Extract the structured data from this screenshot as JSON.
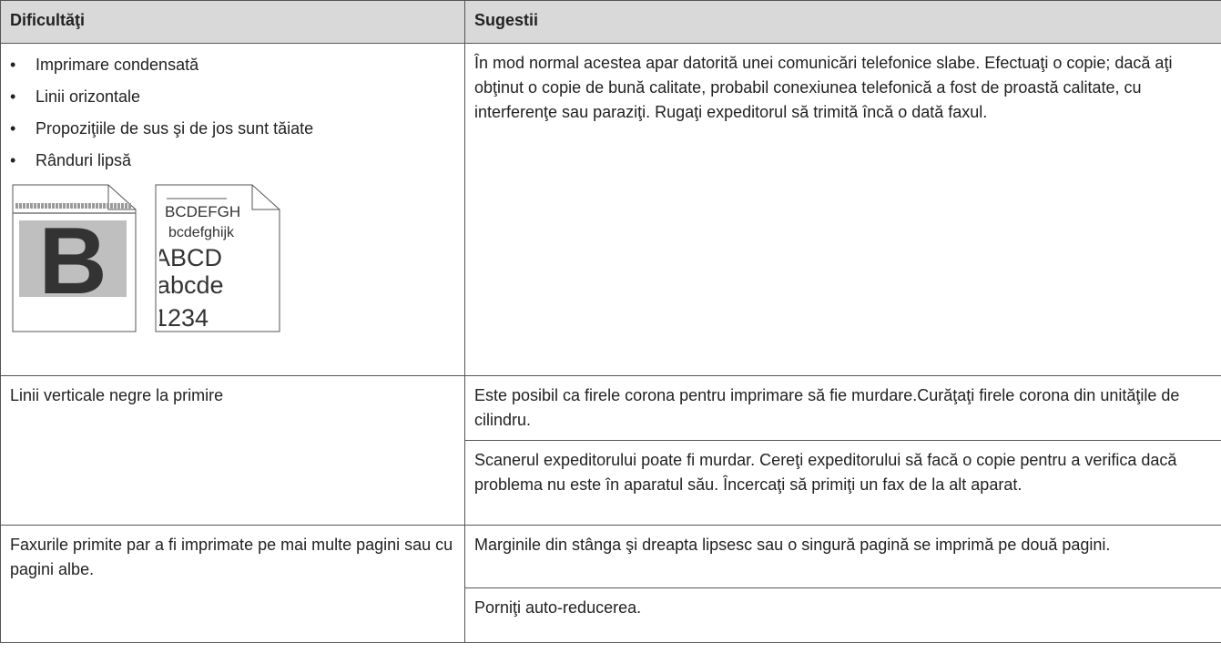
{
  "table": {
    "header": [
      "Dificultăţi",
      "Sugestii"
    ],
    "rows": [
      {
        "difficulty_items": [
          "Imprimare condensată",
          "Linii orizontale",
          "Propoziţiile de sus şi de jos sunt tăiate",
          "Rânduri lipsă"
        ],
        "suggestions": [
          "În mod normal acestea apar datorită unei comunicări telefonice slabe. Efectuaţi o copie; dacă aţi obţinut o copie de bună calitate, probabil conexiunea telefonică a fost de proastă calitate, cu interferenţe sau paraziţi. Rugaţi expeditorul să trimită încă o dată faxul."
        ]
      },
      {
        "difficulty": "Linii verticale negre la primire",
        "suggestions": [
          "Este posibil ca firele corona pentru imprimare să fie murdare.Curăţaţi firele corona din unităţile de cilindru.",
          "Scanerul expeditorului poate fi murdar. Cereţi expeditorului să facă o copie pentru a verifica dacă problema nu este în aparatul său. Încercaţi să primiţi un fax de la alt aparat."
        ]
      },
      {
        "difficulty": "Faxurile primite par a fi imprimate pe mai multe pagini sau cu pagini albe.",
        "suggestions": [
          "Marginile din stânga şi dreapta lipsesc sau o singură pagină se imprimă pe două pagini.",
          "Porniţi auto-reducerea."
        ]
      }
    ],
    "illustration": {
      "letter": "B",
      "text_lines": [
        "BCDEFGH",
        "bcdefghijk",
        "ABCD",
        "abcde",
        "1234"
      ]
    }
  }
}
